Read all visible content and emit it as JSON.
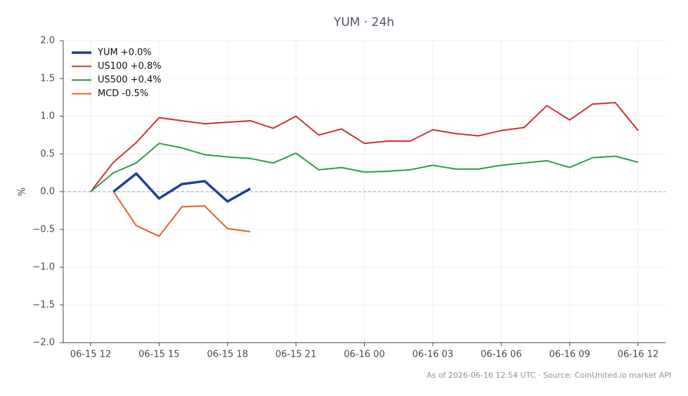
{
  "chart_data": {
    "type": "line",
    "title": "YUM · 24h",
    "y_label": "%",
    "footnote": "As of 2026-06-16 12:54 UTC · Source: CoinUnited.io market API",
    "categories": [
      "06-15 12",
      null,
      null,
      "06-15 15",
      null,
      null,
      "06-15 18",
      null,
      null,
      "06-15 21",
      null,
      null,
      "06-16 00",
      null,
      null,
      "06-16 03",
      null,
      null,
      "06-16 06",
      null,
      null,
      "06-16 09",
      null,
      null,
      "06-16 12"
    ],
    "series": [
      {
        "name": "YUM +0.0%",
        "color": "#1f3f9a",
        "width": 3.5,
        "values": [
          null,
          0,
          0.24,
          -0.09,
          0.1,
          0.14,
          -0.13,
          0.04,
          null,
          null,
          null,
          null,
          null,
          null,
          null,
          null,
          null,
          null,
          null,
          null,
          null,
          null,
          null,
          null,
          null
        ]
      },
      {
        "name": "US100 +0.8%",
        "color": "#d03030",
        "width": 2,
        "values": [
          0,
          0.39,
          0.65,
          0.98,
          0.94,
          0.9,
          0.92,
          0.94,
          0.84,
          1.0,
          0.75,
          0.83,
          0.64,
          0.67,
          0.67,
          0.82,
          0.77,
          0.74,
          0.81,
          0.85,
          1.14,
          0.95,
          1.16,
          1.18,
          0.81
        ]
      },
      {
        "name": "US500 +0.4%",
        "color": "#22a04a",
        "width": 2,
        "values": [
          0,
          0.25,
          0.38,
          0.64,
          0.58,
          0.49,
          0.46,
          0.44,
          0.38,
          0.51,
          0.29,
          0.32,
          0.26,
          0.27,
          0.29,
          0.35,
          0.3,
          0.3,
          0.35,
          0.38,
          0.41,
          0.32,
          0.45,
          0.47,
          0.39
        ]
      },
      {
        "name": "MCD -0.5%",
        "color": "#e06020",
        "width": 2,
        "values": [
          null,
          0,
          -0.45,
          -0.59,
          -0.2,
          -0.19,
          -0.49,
          -0.53,
          null,
          null,
          null,
          null,
          null,
          null,
          null,
          null,
          null,
          null,
          null,
          null,
          null,
          null,
          null,
          null,
          null
        ]
      }
    ],
    "ylim": [
      -2,
      2
    ],
    "yticks": [
      {
        "value": -2,
        "label": "−2.0"
      },
      {
        "value": -1.5,
        "label": "−1.5"
      },
      {
        "value": -1,
        "label": "−1.0"
      },
      {
        "value": -0.5,
        "label": "−0.5"
      },
      {
        "value": 0,
        "label": "0.0"
      },
      0.5,
      {
        "value": 1,
        "label": "1.0"
      },
      1.5,
      {
        "value": 2,
        "label": "2.0"
      }
    ],
    "reference_line": 0,
    "grid": true,
    "legend": "upper left"
  }
}
